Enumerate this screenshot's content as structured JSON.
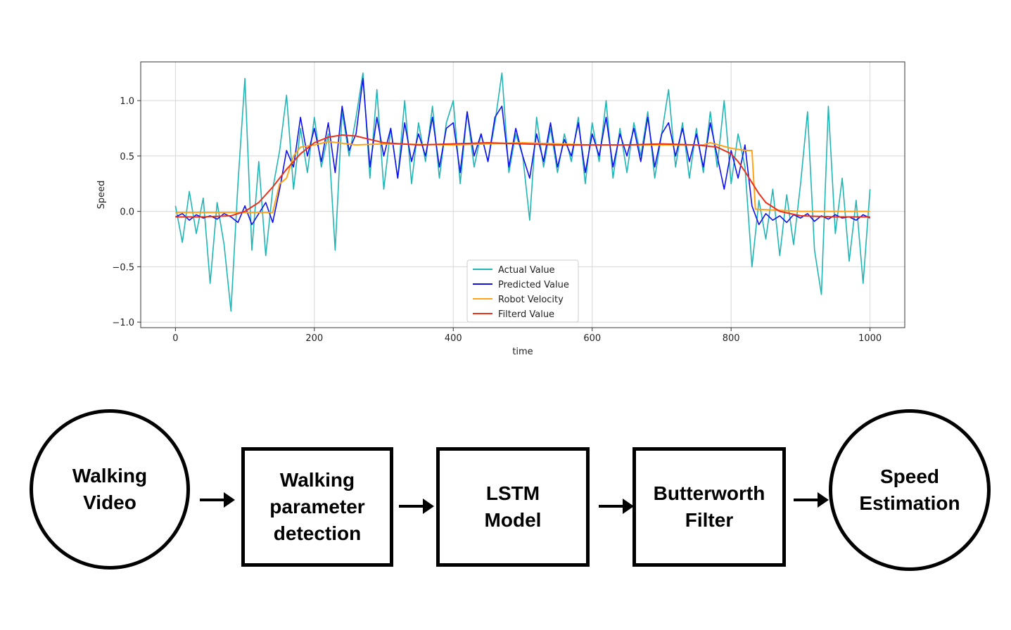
{
  "chart_data": {
    "type": "line",
    "xlabel": "time",
    "ylabel": "Speed",
    "xlim": [
      -50,
      1050
    ],
    "ylim": [
      -1.05,
      1.35
    ],
    "xticks": [
      0,
      200,
      400,
      600,
      800,
      1000
    ],
    "yticks": [
      -1.0,
      -0.5,
      0.0,
      0.5,
      1.0
    ],
    "ytick_labels": [
      "−1.0",
      "−0.5",
      "0.0",
      "0.5",
      "1.0"
    ],
    "grid": true,
    "legend_position": "bottom-center",
    "legend": [
      "Actual Value",
      "Predicted Value",
      "Robot Velocity",
      "Filterd Value"
    ],
    "series": [
      {
        "name": "Actual Value",
        "color": "#22b5b5",
        "x": [
          0,
          10,
          20,
          30,
          40,
          50,
          60,
          70,
          80,
          90,
          100,
          110,
          120,
          130,
          140,
          150,
          160,
          170,
          180,
          190,
          200,
          210,
          220,
          230,
          240,
          250,
          260,
          270,
          280,
          290,
          300,
          310,
          320,
          330,
          340,
          350,
          360,
          370,
          380,
          390,
          400,
          410,
          420,
          430,
          440,
          450,
          460,
          470,
          480,
          490,
          500,
          510,
          520,
          530,
          540,
          550,
          560,
          570,
          580,
          590,
          600,
          610,
          620,
          630,
          640,
          650,
          660,
          670,
          680,
          690,
          700,
          710,
          720,
          730,
          740,
          750,
          760,
          770,
          780,
          790,
          800,
          810,
          820,
          830,
          840,
          850,
          860,
          870,
          880,
          890,
          900,
          910,
          920,
          930,
          940,
          950,
          960,
          970,
          980,
          990,
          1000
        ],
        "values": [
          0.05,
          -0.28,
          0.18,
          -0.2,
          0.12,
          -0.65,
          0.08,
          -0.3,
          -0.9,
          0.25,
          1.2,
          -0.35,
          0.45,
          -0.4,
          0.2,
          0.55,
          1.05,
          0.2,
          0.75,
          0.35,
          0.85,
          0.4,
          0.7,
          -0.35,
          0.9,
          0.5,
          0.85,
          1.25,
          0.3,
          1.1,
          0.2,
          0.75,
          0.3,
          1.0,
          0.25,
          0.8,
          0.45,
          0.95,
          0.3,
          0.8,
          1.0,
          0.25,
          0.9,
          0.4,
          0.7,
          0.45,
          0.8,
          1.25,
          0.35,
          0.7,
          0.5,
          -0.08,
          0.85,
          0.4,
          0.75,
          0.35,
          0.7,
          0.45,
          0.85,
          0.25,
          0.8,
          0.45,
          1.0,
          0.3,
          0.75,
          0.35,
          0.8,
          0.5,
          0.9,
          0.3,
          0.7,
          1.1,
          0.4,
          0.8,
          0.3,
          0.75,
          0.35,
          0.9,
          0.4,
          1.0,
          0.25,
          0.7,
          0.4,
          -0.5,
          0.1,
          -0.25,
          0.2,
          -0.4,
          0.15,
          -0.3,
          0.25,
          0.9,
          -0.35,
          -0.75,
          0.95,
          -0.2,
          0.3,
          -0.45,
          0.1,
          -0.65,
          0.2
        ]
      },
      {
        "name": "Predicted Value",
        "color": "#1010ee",
        "x": [
          0,
          10,
          20,
          30,
          40,
          50,
          60,
          70,
          80,
          90,
          100,
          110,
          120,
          130,
          140,
          150,
          160,
          170,
          180,
          190,
          200,
          210,
          220,
          230,
          240,
          250,
          260,
          270,
          280,
          290,
          300,
          310,
          320,
          330,
          340,
          350,
          360,
          370,
          380,
          390,
          400,
          410,
          420,
          430,
          440,
          450,
          460,
          470,
          480,
          490,
          500,
          510,
          520,
          530,
          540,
          550,
          560,
          570,
          580,
          590,
          600,
          610,
          620,
          630,
          640,
          650,
          660,
          670,
          680,
          690,
          700,
          710,
          720,
          730,
          740,
          750,
          760,
          770,
          780,
          790,
          800,
          810,
          820,
          830,
          840,
          850,
          860,
          870,
          880,
          890,
          900,
          910,
          920,
          930,
          940,
          950,
          960,
          970,
          980,
          990,
          1000
        ],
        "values": [
          -0.05,
          -0.02,
          -0.08,
          -0.03,
          -0.06,
          -0.04,
          -0.07,
          -0.02,
          -0.05,
          -0.1,
          0.05,
          -0.12,
          -0.02,
          0.08,
          -0.1,
          0.2,
          0.55,
          0.4,
          0.85,
          0.5,
          0.75,
          0.45,
          0.8,
          0.35,
          0.95,
          0.55,
          0.7,
          1.2,
          0.4,
          0.85,
          0.5,
          0.75,
          0.3,
          0.8,
          0.45,
          0.7,
          0.5,
          0.85,
          0.4,
          0.75,
          0.8,
          0.35,
          0.9,
          0.5,
          0.7,
          0.45,
          0.85,
          0.95,
          0.4,
          0.75,
          0.5,
          0.3,
          0.7,
          0.45,
          0.8,
          0.4,
          0.65,
          0.5,
          0.8,
          0.35,
          0.7,
          0.5,
          0.85,
          0.4,
          0.7,
          0.5,
          0.75,
          0.45,
          0.85,
          0.4,
          0.7,
          0.8,
          0.5,
          0.75,
          0.45,
          0.7,
          0.4,
          0.8,
          0.5,
          0.2,
          0.55,
          0.3,
          0.6,
          0.05,
          -0.12,
          -0.02,
          -0.08,
          -0.04,
          -0.1,
          -0.03,
          -0.06,
          -0.02,
          -0.09,
          -0.04,
          -0.07,
          -0.03,
          -0.06,
          -0.05,
          -0.08,
          -0.03,
          -0.06
        ]
      },
      {
        "name": "Robot Velocity",
        "color": "#ffa31a",
        "x": [
          0,
          140,
          150,
          160,
          170,
          180,
          200,
          220,
          260,
          300,
          400,
          500,
          600,
          700,
          760,
          770,
          800,
          820,
          830,
          835,
          900,
          1000
        ],
        "values": [
          -0.01,
          -0.01,
          0.25,
          0.3,
          0.5,
          0.58,
          0.6,
          0.63,
          0.6,
          0.61,
          0.6,
          0.62,
          0.6,
          0.6,
          0.6,
          0.62,
          0.57,
          0.55,
          0.55,
          0.02,
          0.0,
          0.0
        ]
      },
      {
        "name": "Filterd Value",
        "color": "#e8321e",
        "x": [
          0,
          40,
          80,
          100,
          120,
          140,
          160,
          180,
          200,
          220,
          240,
          260,
          280,
          300,
          350,
          400,
          450,
          500,
          550,
          600,
          650,
          700,
          750,
          780,
          800,
          810,
          820,
          830,
          840,
          850,
          870,
          900,
          950,
          1000
        ],
        "values": [
          -0.05,
          -0.05,
          -0.04,
          0.0,
          0.08,
          0.22,
          0.38,
          0.52,
          0.62,
          0.67,
          0.69,
          0.68,
          0.65,
          0.62,
          0.6,
          0.61,
          0.62,
          0.61,
          0.6,
          0.6,
          0.6,
          0.61,
          0.6,
          0.58,
          0.52,
          0.45,
          0.36,
          0.26,
          0.16,
          0.08,
          0.0,
          -0.04,
          -0.05,
          -0.05
        ]
      }
    ]
  },
  "flow": {
    "nodes": [
      {
        "lines": [
          "Walking",
          "Video"
        ]
      },
      {
        "lines": [
          "Walking",
          "parameter",
          "detection"
        ]
      },
      {
        "lines": [
          "LSTM",
          "Model"
        ]
      },
      {
        "lines": [
          "Butterworth",
          "Filter"
        ]
      },
      {
        "lines": [
          "Speed",
          "Estimation"
        ]
      }
    ]
  }
}
